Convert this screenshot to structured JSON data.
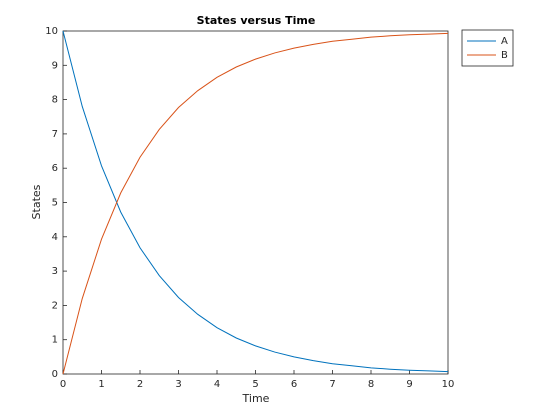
{
  "chart_data": {
    "type": "line",
    "title": "States versus Time",
    "x_label": "Time",
    "y_label": "States",
    "x": [
      0,
      0.5,
      1,
      1.5,
      2,
      2.5,
      3,
      3.5,
      4,
      4.5,
      5,
      5.5,
      6,
      6.5,
      7,
      7.5,
      8,
      8.5,
      9,
      9.5,
      10
    ],
    "series": [
      {
        "name": "A",
        "color": "#0072bd",
        "values": [
          10,
          7.8,
          6.07,
          4.72,
          3.68,
          2.87,
          2.23,
          1.74,
          1.35,
          1.05,
          0.82,
          0.64,
          0.5,
          0.39,
          0.3,
          0.24,
          0.18,
          0.14,
          0.11,
          0.09,
          0.07
        ]
      },
      {
        "name": "B",
        "color": "#d95319",
        "values": [
          0,
          2.2,
          3.93,
          5.28,
          6.32,
          7.13,
          7.77,
          8.26,
          8.65,
          8.95,
          9.18,
          9.36,
          9.5,
          9.61,
          9.7,
          9.76,
          9.82,
          9.86,
          9.89,
          9.91,
          9.93
        ]
      }
    ],
    "xlim": [
      0,
      10
    ],
    "xticks": [
      0,
      1,
      2,
      3,
      4,
      5,
      6,
      7,
      8,
      9,
      10
    ],
    "ylim": [
      0,
      10
    ],
    "yticks": [
      0,
      1,
      2,
      3,
      4,
      5,
      6,
      7,
      8,
      9,
      10
    ],
    "legend": "outside-top-right"
  }
}
